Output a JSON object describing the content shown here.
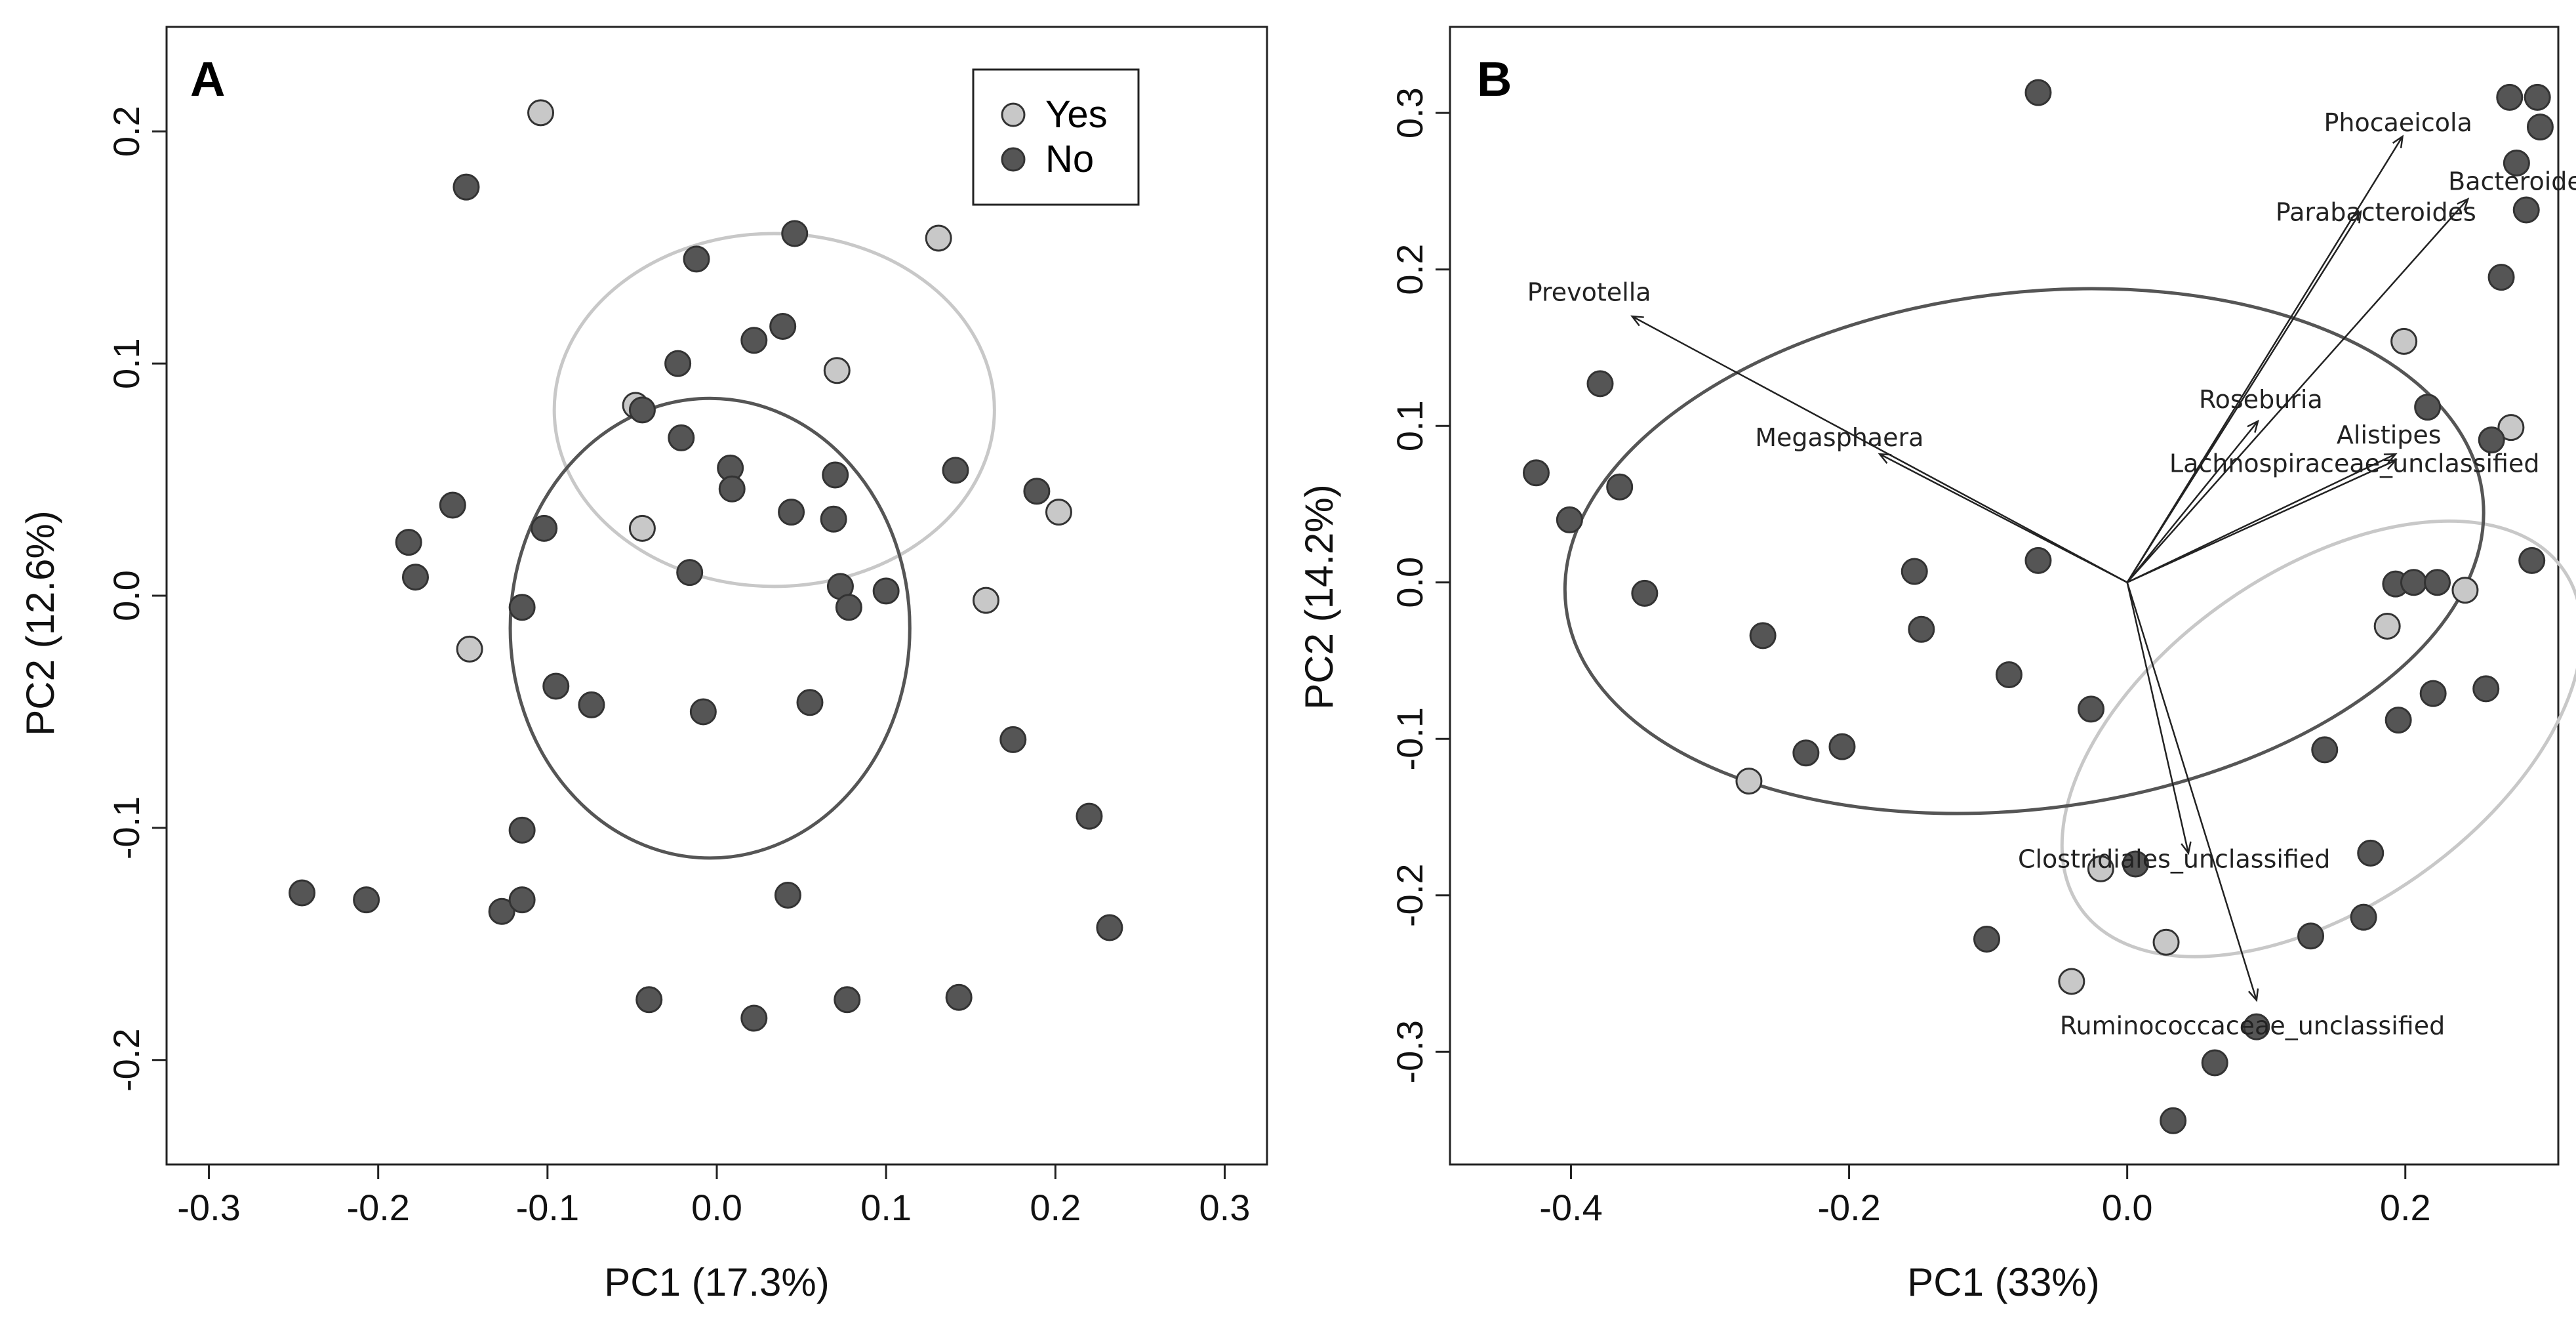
{
  "chart_data": [
    {
      "panel": "A",
      "type": "scatter",
      "title": "",
      "xlabel": "PC1 (17.3%)",
      "ylabel": "PC2 (12.6%)",
      "xlim": [
        -0.325,
        0.325
      ],
      "ylim": [
        -0.245,
        0.245
      ],
      "xticks": [
        -0.3,
        -0.2,
        -0.1,
        0.0,
        0.1,
        0.2,
        0.3
      ],
      "xtick_labels": [
        "-0.3",
        "-0.2",
        "-0.1",
        "0.0",
        "0.1",
        "0.2",
        "0.3"
      ],
      "yticks": [
        -0.2,
        -0.1,
        0.0,
        0.1,
        0.2
      ],
      "ytick_labels": [
        "-0.2",
        "-0.1",
        "0.0",
        "0.1",
        "0.2"
      ],
      "legend": {
        "placement": "top-right",
        "entries": [
          {
            "name": "Yes",
            "color": "#c8c8c8"
          },
          {
            "name": "No",
            "color": "#555555"
          }
        ]
      },
      "series": [
        {
          "name": "Yes",
          "color": "#c8c8c8",
          "points": [
            [
              -0.104,
              0.208
            ],
            [
              0.131,
              0.154
            ],
            [
              0.071,
              0.097
            ],
            [
              -0.048,
              0.082
            ],
            [
              -0.044,
              0.029
            ],
            [
              0.202,
              0.036
            ],
            [
              0.159,
              -0.002
            ],
            [
              -0.146,
              -0.023
            ]
          ]
        },
        {
          "name": "No",
          "color": "#555555",
          "points": [
            [
              -0.148,
              0.176
            ],
            [
              0.046,
              0.156
            ],
            [
              -0.012,
              0.145
            ],
            [
              0.039,
              0.116
            ],
            [
              0.022,
              0.11
            ],
            [
              -0.023,
              0.1
            ],
            [
              -0.044,
              0.08
            ],
            [
              -0.021,
              0.068
            ],
            [
              0.008,
              0.055
            ],
            [
              0.07,
              0.052
            ],
            [
              0.141,
              0.054
            ],
            [
              0.189,
              0.045
            ],
            [
              0.009,
              0.046
            ],
            [
              0.044,
              0.036
            ],
            [
              0.069,
              0.033
            ],
            [
              -0.156,
              0.039
            ],
            [
              -0.102,
              0.029
            ],
            [
              -0.182,
              0.023
            ],
            [
              -0.178,
              0.008
            ],
            [
              -0.016,
              0.01
            ],
            [
              0.073,
              0.004
            ],
            [
              0.1,
              0.002
            ],
            [
              0.078,
              -0.005
            ],
            [
              -0.115,
              -0.005
            ],
            [
              -0.095,
              -0.039
            ],
            [
              -0.074,
              -0.047
            ],
            [
              -0.008,
              -0.05
            ],
            [
              0.055,
              -0.046
            ],
            [
              0.175,
              -0.062
            ],
            [
              0.22,
              -0.095
            ],
            [
              -0.115,
              -0.101
            ],
            [
              -0.245,
              -0.128
            ],
            [
              -0.207,
              -0.131
            ],
            [
              -0.127,
              -0.136
            ],
            [
              -0.115,
              -0.131
            ],
            [
              0.042,
              -0.129
            ],
            [
              0.232,
              -0.143
            ],
            [
              -0.04,
              -0.174
            ],
            [
              0.077,
              -0.174
            ],
            [
              0.143,
              -0.173
            ],
            [
              0.022,
              -0.182
            ]
          ]
        }
      ],
      "ellipses": [
        {
          "group": "Yes",
          "color": "#c8c8c8",
          "center": [
            0.034,
            0.08
          ],
          "radii": [
            0.13,
            0.076
          ]
        },
        {
          "group": "No",
          "color": "#555555",
          "center": [
            -0.004,
            -0.014
          ],
          "radii": [
            0.118,
            0.099
          ]
        }
      ]
    },
    {
      "panel": "B",
      "type": "scatter",
      "title": "",
      "xlabel": "PC1 (33%)",
      "ylabel": "PC2 (14.2%)",
      "xlim": [
        -0.487,
        0.31
      ],
      "ylim": [
        -0.372,
        0.355
      ],
      "xticks": [
        -0.4,
        -0.2,
        0.0,
        0.2
      ],
      "xtick_labels": [
        "-0.4",
        "-0.2",
        "0.0",
        "0.2"
      ],
      "yticks": [
        -0.3,
        -0.2,
        -0.1,
        0.0,
        0.1,
        0.2,
        0.3
      ],
      "ytick_labels": [
        "-0.3",
        "-0.2",
        "-0.1",
        "0.0",
        "0.1",
        "0.2",
        "0.3"
      ],
      "series": [
        {
          "name": "Yes",
          "color": "#c8c8c8",
          "points": [
            [
              0.199,
              0.154
            ],
            [
              0.276,
              0.099
            ],
            [
              0.243,
              -0.005
            ],
            [
              0.187,
              -0.028
            ],
            [
              -0.272,
              -0.127
            ],
            [
              -0.019,
              -0.183
            ],
            [
              0.028,
              -0.23
            ],
            [
              -0.04,
              -0.255
            ]
          ]
        },
        {
          "name": "No",
          "color": "#555555",
          "points": [
            [
              -0.064,
              0.313
            ],
            [
              0.275,
              0.31
            ],
            [
              0.295,
              0.31
            ],
            [
              0.297,
              0.291
            ],
            [
              0.28,
              0.268
            ],
            [
              0.287,
              0.238
            ],
            [
              0.269,
              0.195
            ],
            [
              -0.379,
              0.127
            ],
            [
              0.216,
              0.112
            ],
            [
              0.262,
              0.091
            ],
            [
              -0.425,
              0.07
            ],
            [
              -0.365,
              0.061
            ],
            [
              -0.401,
              0.04
            ],
            [
              0.193,
              -0.001
            ],
            [
              0.206,
              0.0
            ],
            [
              0.223,
              0.0
            ],
            [
              0.291,
              0.014
            ],
            [
              -0.064,
              0.014
            ],
            [
              -0.153,
              0.007
            ],
            [
              -0.347,
              -0.007
            ],
            [
              -0.148,
              -0.03
            ],
            [
              -0.262,
              -0.034
            ],
            [
              -0.085,
              -0.059
            ],
            [
              0.22,
              -0.071
            ],
            [
              0.258,
              -0.068
            ],
            [
              -0.026,
              -0.081
            ],
            [
              0.195,
              -0.088
            ],
            [
              0.142,
              -0.107
            ],
            [
              -0.231,
              -0.109
            ],
            [
              -0.205,
              -0.105
            ],
            [
              0.175,
              -0.173
            ],
            [
              0.17,
              -0.214
            ],
            [
              0.132,
              -0.226
            ],
            [
              -0.101,
              -0.228
            ],
            [
              0.006,
              -0.18
            ],
            [
              0.093,
              -0.284
            ],
            [
              0.063,
              -0.307
            ],
            [
              0.033,
              -0.344
            ]
          ]
        }
      ],
      "ellipses": [
        {
          "group": "Yes",
          "color": "#c8c8c8",
          "center": [
            0.14,
            -0.1
          ],
          "radii": [
            0.212,
            0.107
          ],
          "angle_deg": -35
        },
        {
          "group": "No",
          "color": "#555555",
          "center": [
            -0.074,
            0.02
          ],
          "radii": [
            0.332,
            0.165
          ],
          "angle_deg": -7
        }
      ],
      "vectors": [
        {
          "label": "Phocaeicola",
          "tip": [
            0.198,
            0.285
          ]
        },
        {
          "label": "Bacteroides",
          "tip": [
            0.245,
            0.245
          ]
        },
        {
          "label": "Parabacteroides",
          "tip": [
            0.168,
            0.237
          ]
        },
        {
          "label": "Prevotella",
          "tip": [
            -0.356,
            0.17
          ]
        },
        {
          "label": "Megasphaera",
          "tip": [
            -0.178,
            0.082
          ]
        },
        {
          "label": "Roseburia",
          "tip": [
            0.094,
            0.103
          ]
        },
        {
          "label": "Alistipes",
          "tip": [
            0.193,
            0.082
          ]
        },
        {
          "label": "Lachnospiraceae_unclassified",
          "tip": [
            0.193,
            0.078
          ]
        },
        {
          "label": "Clostridiales_unclassified",
          "tip": [
            0.044,
            -0.173
          ]
        },
        {
          "label": "Ruminococcaceae_unclassified",
          "tip": [
            0.093,
            -0.267
          ]
        }
      ]
    }
  ]
}
